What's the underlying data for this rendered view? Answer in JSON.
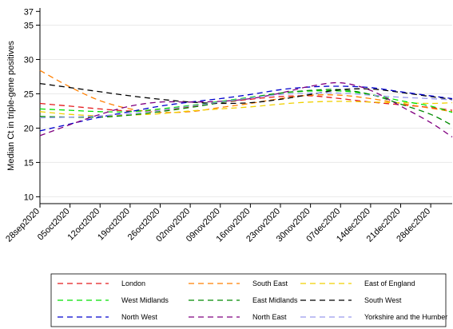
{
  "chart_data": {
    "type": "line",
    "title": "",
    "xlabel": "",
    "ylabel": "Median Ct in triple-gene positives",
    "x_ticks": [
      "28sep2020",
      "05oct2020",
      "12oct2020",
      "19oct2020",
      "26oct2020",
      "02nov2020",
      "09nov2020",
      "16nov2020",
      "23nov2020",
      "30nov2020",
      "07dec2020",
      "14dec2020",
      "21dec2020",
      "28dec2020"
    ],
    "y_ticks": [
      10,
      15,
      20,
      25,
      30,
      35,
      37
    ],
    "ylim": [
      9,
      37.5
    ],
    "xlim": [
      "28sep2020",
      "02jan2021"
    ],
    "grid": "horizontal",
    "legend_position": "bottom",
    "x": [
      "28sep2020",
      "05oct2020",
      "12oct2020",
      "19oct2020",
      "26oct2020",
      "02nov2020",
      "09nov2020",
      "16nov2020",
      "23nov2020",
      "30nov2020",
      "07dec2020",
      "14dec2020",
      "21dec2020",
      "28dec2020",
      "02jan2021"
    ],
    "series": [
      {
        "name": "London",
        "color": "#e41a1c",
        "dash": "7,5",
        "values": [
          23.6,
          23.2,
          22.8,
          22.5,
          22.6,
          23.1,
          23.7,
          24.2,
          24.6,
          24.7,
          24.3,
          23.8,
          23.4,
          23.0,
          22.6
        ]
      },
      {
        "name": "South East",
        "color": "#ff7f00",
        "dash": "7,5",
        "values": [
          28.4,
          26.0,
          24.0,
          22.8,
          22.3,
          22.4,
          23.0,
          23.6,
          24.3,
          24.8,
          24.8,
          24.3,
          23.6,
          22.9,
          22.4
        ]
      },
      {
        "name": "East of England",
        "color": "#f0d000",
        "dash": "7,5",
        "values": [
          22.4,
          22.0,
          21.8,
          21.9,
          22.1,
          22.5,
          22.8,
          23.1,
          23.5,
          23.8,
          23.9,
          23.8,
          23.7,
          23.6,
          23.7
        ]
      },
      {
        "name": "West Midlands",
        "color": "#00e000",
        "dash": "7,5",
        "values": [
          22.8,
          22.6,
          22.4,
          22.4,
          22.8,
          23.3,
          23.9,
          24.5,
          25.1,
          25.4,
          25.4,
          24.9,
          24.0,
          23.2,
          22.3
        ]
      },
      {
        "name": "East Midlands",
        "color": "#008b00",
        "dash": "7,5",
        "values": [
          21.7,
          21.6,
          21.6,
          21.9,
          22.4,
          23.0,
          23.7,
          24.4,
          25.1,
          25.5,
          25.6,
          24.9,
          23.5,
          22.0,
          20.4
        ]
      },
      {
        "name": "South West",
        "color": "#000000",
        "dash": "7,5",
        "values": [
          26.5,
          25.9,
          25.3,
          24.7,
          24.2,
          23.8,
          23.6,
          23.7,
          24.2,
          24.9,
          25.6,
          25.7,
          25.2,
          24.6,
          24.2
        ]
      },
      {
        "name": "North West",
        "color": "#0000cd",
        "dash": "7,5",
        "values": [
          19.6,
          20.6,
          21.6,
          22.4,
          23.2,
          23.8,
          24.3,
          24.9,
          25.6,
          26.0,
          26.1,
          25.9,
          25.3,
          24.7,
          24.3
        ]
      },
      {
        "name": "North East",
        "color": "#800080",
        "dash": "7,5",
        "values": [
          18.9,
          20.5,
          22.0,
          23.2,
          23.8,
          23.8,
          23.9,
          24.3,
          25.1,
          26.1,
          26.6,
          25.5,
          23.2,
          20.8,
          18.7
        ]
      },
      {
        "name": "Yorkshire and the Humber",
        "color": "#9999ee",
        "dash": "7,5",
        "values": [
          21.5,
          21.6,
          21.8,
          22.1,
          22.6,
          23.2,
          23.8,
          24.4,
          24.9,
          25.1,
          25.1,
          24.8,
          24.5,
          24.3,
          24.1
        ]
      }
    ]
  }
}
